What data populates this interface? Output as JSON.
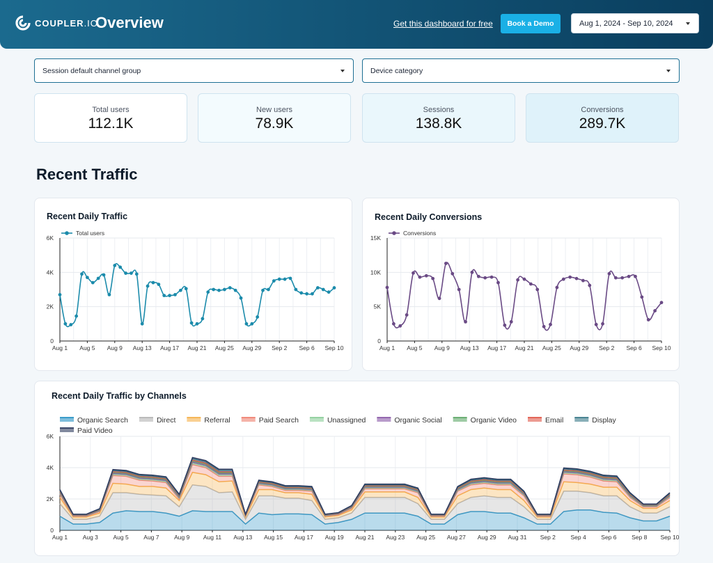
{
  "header": {
    "brand": {
      "name": "COUPLER",
      "suffix": ".IO"
    },
    "title": "Overview",
    "link_text": "Get this dashboard for free",
    "demo_button": "Book a Demo",
    "date_range": "Aug 1, 2024 - Sep 10, 2024",
    "colors": {
      "gradient_start": "#1b6a8e",
      "gradient_end": "#0a3e5e",
      "button": "#1ab0e6"
    }
  },
  "filters": {
    "channel_group": "Session default channel group",
    "device_category": "Device category"
  },
  "kpis": [
    {
      "label": "Total users",
      "value": "112.1K",
      "bg": "#ffffff"
    },
    {
      "label": "New users",
      "value": "78.9K",
      "bg": "#f3fbfe"
    },
    {
      "label": "Sessions",
      "value": "138.8K",
      "bg": "#eaf7fc"
    },
    {
      "label": "Conversions",
      "value": "289.7K",
      "bg": "#dff2fa"
    }
  ],
  "section_title": "Recent Traffic",
  "chart_data": [
    {
      "id": "traffic",
      "type": "line",
      "title": "Recent Daily Traffic",
      "legend": [
        "Total users"
      ],
      "color": "#1b8bab",
      "ylim": [
        0,
        6000
      ],
      "yticks": [
        "0",
        "2K",
        "4K",
        "6K"
      ],
      "ytick_values": [
        0,
        2000,
        4000,
        6000
      ],
      "xtick_labels": [
        "Aug 1",
        "Aug 5",
        "Aug 9",
        "Aug 13",
        "Aug 17",
        "Aug 21",
        "Aug 25",
        "Aug 29",
        "Sep 2",
        "Sep 6",
        "Sep 10"
      ],
      "series": [
        {
          "name": "Total users",
          "values": [
            2700,
            1000,
            950,
            1450,
            3900,
            3700,
            3400,
            3650,
            3850,
            2700,
            4400,
            4300,
            3950,
            3950,
            3900,
            1000,
            3200,
            3400,
            3300,
            2650,
            2650,
            2700,
            2950,
            3050,
            1050,
            1000,
            1300,
            2850,
            3000,
            2950,
            3000,
            3100,
            2950,
            2500,
            1000,
            1000,
            1400,
            2950,
            3000,
            3500,
            3600,
            3600,
            3650,
            3000,
            2800,
            2750,
            2750,
            3100,
            3000,
            2850,
            3100
          ]
        }
      ]
    },
    {
      "id": "conversions",
      "type": "line",
      "title": "Recent Daily Conversions",
      "legend": [
        "Conversions"
      ],
      "color": "#6a4a85",
      "ylim": [
        0,
        15000
      ],
      "yticks": [
        "0",
        "5K",
        "10K",
        "15K"
      ],
      "ytick_values": [
        0,
        5000,
        10000,
        15000
      ],
      "xtick_labels": [
        "Aug 1",
        "Aug 5",
        "Aug 9",
        "Aug 13",
        "Aug 17",
        "Aug 21",
        "Aug 25",
        "Aug 29",
        "Sep 2",
        "Sep 6",
        "Sep 10"
      ],
      "series": [
        {
          "name": "Conversions",
          "values": [
            7800,
            2500,
            2200,
            3800,
            9900,
            9300,
            9500,
            9100,
            6200,
            11300,
            9800,
            7500,
            2800,
            10000,
            9400,
            9200,
            9300,
            8500,
            2300,
            2800,
            8900,
            9000,
            8300,
            7500,
            2100,
            2400,
            7800,
            9000,
            9300,
            9100,
            8800,
            8100,
            2400,
            2500,
            9800,
            9200,
            9200,
            9400,
            9400,
            6400,
            3100,
            4400,
            5600
          ]
        }
      ]
    },
    {
      "id": "channels",
      "type": "area",
      "stacked": true,
      "title": "Recent Daily Traffic by Channels",
      "ylim": [
        0,
        6000
      ],
      "yticks": [
        "0",
        "2K",
        "4K",
        "6K"
      ],
      "ytick_values": [
        0,
        2000,
        4000,
        6000
      ],
      "xtick_labels": [
        "Aug 1",
        "Aug 3",
        "Aug 5",
        "Aug 7",
        "Aug 9",
        "Aug 11",
        "Aug 13",
        "Aug 15",
        "Aug 17",
        "Aug 19",
        "Aug 21",
        "Aug 23",
        "Aug 25",
        "Aug 27",
        "Aug 29",
        "Aug 31",
        "Sep 2",
        "Sep 4",
        "Sep 6",
        "Sep 8",
        "Sep 10"
      ],
      "series": [
        {
          "name": "Organic Search",
          "color": "#2a92c4",
          "values": [
            900,
            400,
            400,
            500,
            1100,
            1250,
            1200,
            1200,
            1100,
            900,
            1250,
            1200,
            1200,
            1200,
            400,
            1100,
            1000,
            1050,
            1050,
            1000,
            400,
            500,
            700,
            1100,
            1100,
            1100,
            1100,
            900,
            400,
            400,
            1000,
            1200,
            1200,
            1100,
            1100,
            800,
            400,
            400,
            1200,
            1300,
            1300,
            1150,
            1100,
            800,
            600,
            600,
            900
          ]
        },
        {
          "name": "Direct",
          "color": "#b4b4b4",
          "values": [
            800,
            300,
            300,
            400,
            1300,
            1150,
            1100,
            1050,
            1100,
            600,
            1650,
            1600,
            1200,
            1250,
            300,
            1100,
            1200,
            1000,
            1000,
            900,
            300,
            300,
            400,
            1000,
            1000,
            1000,
            1000,
            800,
            300,
            300,
            700,
            900,
            1000,
            1000,
            1000,
            700,
            300,
            300,
            1300,
            1200,
            1100,
            1050,
            1100,
            700,
            500,
            500,
            600
          ]
        },
        {
          "name": "Referral",
          "color": "#f5b04a",
          "values": [
            400,
            150,
            150,
            200,
            600,
            550,
            500,
            550,
            500,
            400,
            800,
            750,
            700,
            700,
            150,
            400,
            400,
            350,
            350,
            400,
            150,
            150,
            200,
            350,
            350,
            350,
            350,
            400,
            150,
            150,
            500,
            500,
            500,
            500,
            500,
            400,
            150,
            150,
            600,
            550,
            550,
            550,
            550,
            400,
            300,
            300,
            400
          ]
        },
        {
          "name": "Paid Search",
          "color": "#ef8070",
          "values": [
            200,
            50,
            50,
            100,
            500,
            500,
            400,
            350,
            350,
            100,
            500,
            450,
            350,
            300,
            50,
            300,
            200,
            150,
            150,
            200,
            50,
            50,
            100,
            200,
            200,
            200,
            200,
            300,
            50,
            50,
            300,
            300,
            300,
            300,
            300,
            300,
            50,
            50,
            500,
            500,
            450,
            400,
            350,
            200,
            100,
            100,
            200
          ]
        },
        {
          "name": "Unassigned",
          "color": "#8cce9a",
          "values": [
            60,
            30,
            30,
            40,
            80,
            80,
            80,
            80,
            80,
            60,
            90,
            90,
            90,
            90,
            30,
            60,
            60,
            60,
            60,
            60,
            30,
            30,
            40,
            60,
            60,
            60,
            60,
            60,
            30,
            30,
            60,
            70,
            70,
            70,
            70,
            60,
            30,
            30,
            80,
            80,
            80,
            80,
            80,
            60,
            40,
            40,
            60
          ]
        },
        {
          "name": "Organic Social",
          "color": "#8a5aa8",
          "values": [
            50,
            20,
            20,
            30,
            60,
            60,
            60,
            60,
            60,
            50,
            70,
            70,
            70,
            70,
            20,
            50,
            50,
            50,
            50,
            50,
            20,
            20,
            30,
            50,
            50,
            50,
            50,
            50,
            20,
            20,
            50,
            60,
            60,
            60,
            60,
            50,
            20,
            20,
            60,
            60,
            60,
            60,
            60,
            50,
            30,
            30,
            50
          ]
        },
        {
          "name": "Organic Video",
          "color": "#5fa869",
          "values": [
            50,
            20,
            20,
            30,
            60,
            60,
            60,
            60,
            60,
            50,
            70,
            70,
            70,
            70,
            20,
            50,
            50,
            50,
            50,
            50,
            20,
            20,
            30,
            50,
            50,
            50,
            50,
            50,
            20,
            20,
            50,
            60,
            60,
            60,
            60,
            50,
            20,
            20,
            60,
            60,
            60,
            60,
            60,
            50,
            30,
            30,
            50
          ]
        },
        {
          "name": "Email",
          "color": "#e0584a",
          "values": [
            40,
            15,
            15,
            20,
            50,
            50,
            50,
            50,
            50,
            40,
            60,
            60,
            60,
            60,
            15,
            40,
            40,
            40,
            40,
            40,
            15,
            15,
            20,
            40,
            40,
            40,
            40,
            40,
            15,
            15,
            40,
            50,
            50,
            50,
            50,
            40,
            15,
            15,
            50,
            50,
            50,
            50,
            50,
            40,
            20,
            20,
            40
          ]
        },
        {
          "name": "Display",
          "color": "#3a7a88",
          "values": [
            50,
            25,
            25,
            30,
            70,
            60,
            60,
            60,
            60,
            50,
            80,
            80,
            80,
            80,
            25,
            50,
            50,
            50,
            50,
            50,
            25,
            25,
            30,
            50,
            50,
            50,
            50,
            50,
            25,
            25,
            50,
            60,
            60,
            60,
            60,
            50,
            25,
            25,
            70,
            60,
            60,
            60,
            60,
            50,
            30,
            30,
            50
          ]
        },
        {
          "name": "Paid Video",
          "color": "#2d3a5e",
          "values": [
            50,
            20,
            20,
            30,
            60,
            60,
            60,
            60,
            60,
            50,
            80,
            80,
            80,
            80,
            20,
            50,
            50,
            50,
            50,
            50,
            20,
            20,
            30,
            50,
            50,
            50,
            50,
            50,
            20,
            20,
            50,
            60,
            60,
            60,
            60,
            50,
            20,
            20,
            60,
            60,
            60,
            60,
            60,
            50,
            30,
            30,
            50
          ]
        }
      ]
    }
  ]
}
